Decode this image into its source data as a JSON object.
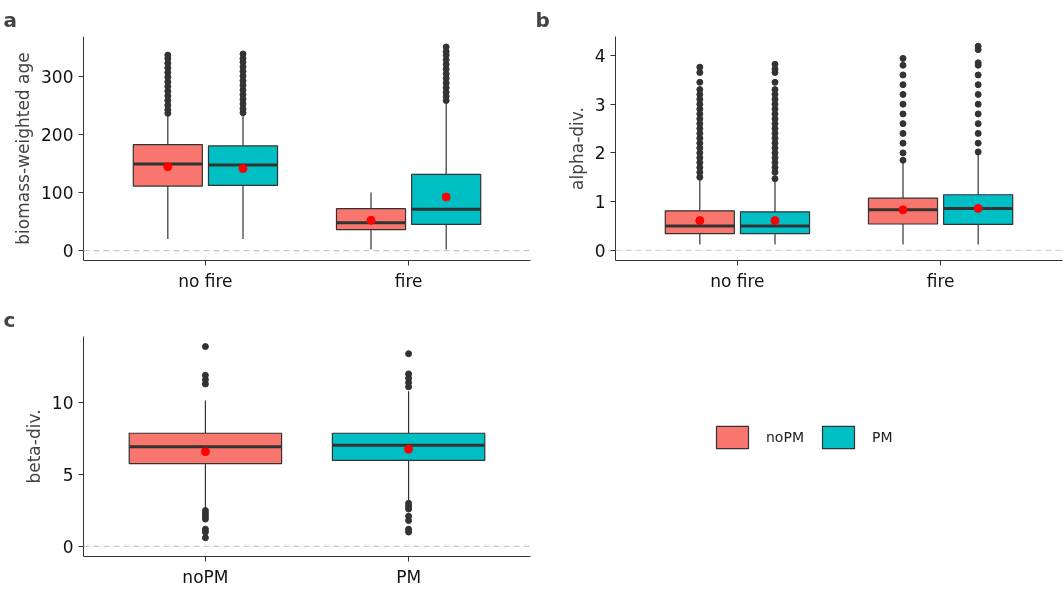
{
  "chart_data": [
    {
      "type": "box",
      "title": "a",
      "ylabel": "biomass-weighted age",
      "categories": [
        "no fire",
        "fire"
      ],
      "ylim": [
        -17,
        368
      ],
      "yticks": [
        0,
        100,
        200,
        300
      ],
      "grid": false,
      "legend": "bottom right",
      "ref_lines": [
        {
          "axis": "y",
          "value": 0,
          "color": "#c8c8c8",
          "line_style": "dashed"
        }
      ],
      "series": [
        {
          "name": "noPM",
          "color": "#f8766d",
          "boxes": [
            {
              "low": 20,
              "q1": 111,
              "median": 149,
              "q3": 182,
              "high": 233,
              "mean": 144,
              "outliers": [
                236,
                242,
                250,
                258,
                266,
                274,
                282,
                290,
                298,
                306,
                314,
                322,
                330,
                336
              ]
            },
            {
              "low": 2,
              "q1": 36,
              "median": 48,
              "q3": 72,
              "high": 100,
              "mean": 52
            }
          ]
        },
        {
          "name": "PM",
          "color": "#00bfc4",
          "boxes": [
            {
              "low": 20,
              "q1": 112,
              "median": 147,
              "q3": 180,
              "high": 234,
              "mean": 141,
              "outliers": [
                237,
                244,
                252,
                260,
                268,
                276,
                284,
                292,
                300,
                308,
                316,
                324,
                330,
                338
              ]
            },
            {
              "low": 2,
              "q1": 45,
              "median": 71,
              "q3": 131,
              "high": 255,
              "mean": 92,
              "outliers": [
                258,
                265,
                272,
                280,
                288,
                296,
                304,
                312,
                320,
                328,
                336,
                342,
                350
              ]
            }
          ]
        }
      ]
    },
    {
      "type": "box",
      "title": "b",
      "ylabel": "alpha-div.",
      "categories": [
        "no fire",
        "fire"
      ],
      "ylim": [
        -0.21,
        4.39
      ],
      "yticks": [
        0,
        1,
        2,
        3,
        4
      ],
      "grid": false,
      "ref_lines": [
        {
          "axis": "y",
          "value": 0,
          "color": "#c8c8c8",
          "line_style": "dashed"
        }
      ],
      "series": [
        {
          "color": "#f8766d",
          "boxes": [
            {
              "low": 0.12,
              "q1": 0.34,
              "median": 0.5,
              "q3": 0.81,
              "high": 1.48,
              "mean": 0.61,
              "outliers": [
                1.5,
                1.6,
                1.7,
                1.8,
                1.9,
                2.0,
                2.1,
                2.2,
                2.3,
                2.4,
                2.5,
                2.6,
                2.7,
                2.8,
                2.9,
                3.0,
                3.1,
                3.2,
                3.3,
                3.45,
                3.65,
                3.76
              ]
            },
            {
              "low": 0.12,
              "q1": 0.54,
              "median": 0.83,
              "q3": 1.07,
              "high": 1.83,
              "mean": 0.83,
              "outliers": [
                1.85,
                2.0,
                2.2,
                2.4,
                2.6,
                2.8,
                3.0,
                3.2,
                3.4,
                3.6,
                3.8,
                3.94
              ]
            }
          ]
        },
        {
          "color": "#00bfc4",
          "boxes": [
            {
              "low": 0.12,
              "q1": 0.34,
              "median": 0.5,
              "q3": 0.79,
              "high": 1.45,
              "mean": 0.61,
              "outliers": [
                1.47,
                1.6,
                1.7,
                1.8,
                1.9,
                2.0,
                2.1,
                2.2,
                2.3,
                2.4,
                2.5,
                2.6,
                2.7,
                2.8,
                2.9,
                3.0,
                3.1,
                3.2,
                3.3,
                3.45,
                3.65,
                3.72,
                3.82
              ]
            },
            {
              "low": 0.12,
              "q1": 0.53,
              "median": 0.86,
              "q3": 1.14,
              "high": 2.0,
              "mean": 0.86,
              "outliers": [
                2.02,
                2.2,
                2.4,
                2.6,
                2.8,
                3.0,
                3.2,
                3.4,
                3.6,
                3.8,
                3.85,
                4.12,
                4.19
              ]
            }
          ]
        }
      ]
    },
    {
      "type": "box",
      "title": "c",
      "ylabel": "beta-div.",
      "categories": [
        "noPM",
        "PM"
      ],
      "ylim": [
        -0.7,
        14.6
      ],
      "yticks": [
        0,
        5,
        10
      ],
      "grid": false,
      "ref_lines": [
        {
          "axis": "y",
          "value": 0,
          "color": "#c8c8c8",
          "line_style": "dashed"
        }
      ],
      "colors": [
        "#f8766d",
        "#00bfc4"
      ],
      "boxes": [
        {
          "low": 2.65,
          "q1": 5.76,
          "median": 6.93,
          "q3": 7.87,
          "high": 10.15,
          "mean": 6.59,
          "outliers": [
            0.6,
            1.0,
            1.2,
            1.9,
            2.1,
            2.3,
            2.5,
            11.3,
            11.6,
            11.9,
            13.9
          ]
        },
        {
          "low": 3.2,
          "q1": 5.98,
          "median": 7.04,
          "q3": 7.87,
          "high": 10.8,
          "mean": 6.76,
          "outliers": [
            1.0,
            1.2,
            1.8,
            2.1,
            2.6,
            2.8,
            3.0,
            11.1,
            11.4,
            11.7,
            12.0,
            13.4
          ]
        }
      ]
    }
  ]
}
